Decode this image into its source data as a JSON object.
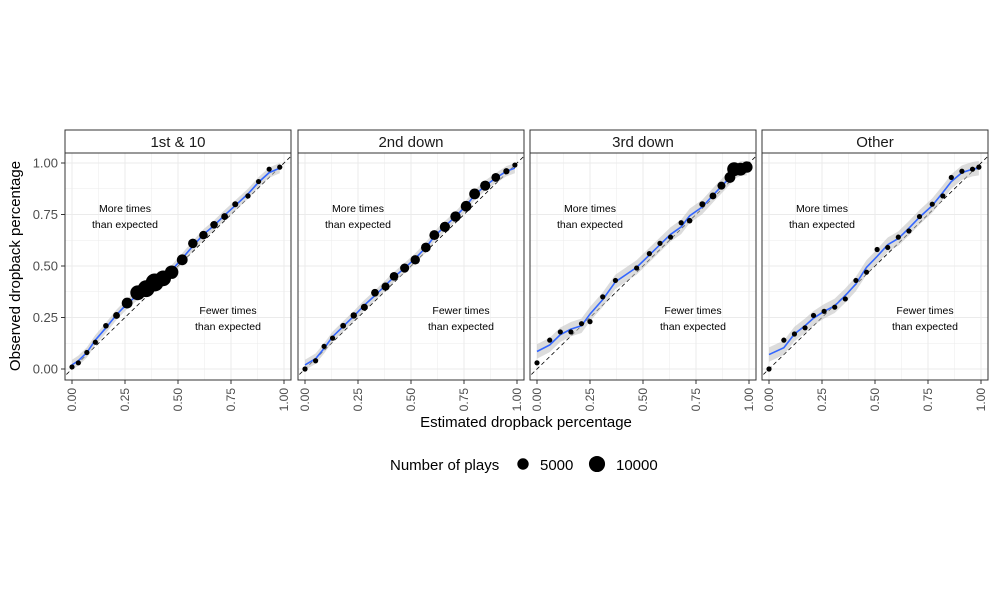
{
  "chart_data": {
    "type": "scatter",
    "xlabel": "Estimated dropback percentage",
    "ylabel": "Observed dropback percentage",
    "xlim": [
      0,
      1
    ],
    "ylim": [
      0,
      1
    ],
    "ticks": [
      0,
      0.25,
      0.5,
      0.75,
      1
    ],
    "tick_labels": [
      "0.00",
      "0.25",
      "0.50",
      "0.75",
      "1.00"
    ],
    "grid": true,
    "reference_line": "dashed y = x",
    "fit_line": "loess smooth with confidence band",
    "colors": {
      "points": "#000000",
      "fit": "#3366ff",
      "band": "#bfbfbf",
      "strip": "#ffffff",
      "grid": "#ebebeb"
    },
    "annotations": {
      "upper": [
        "More times",
        "than expected"
      ],
      "lower": [
        "Fewer times",
        "than expected"
      ]
    },
    "legend": {
      "title": "Number of plays",
      "placement": "bottom",
      "entries": [
        {
          "label": "5000",
          "value": 5000
        },
        {
          "label": "10000",
          "value": 10000
        }
      ]
    },
    "panels": [
      {
        "title": "1st & 10",
        "points": [
          {
            "x": 0.0,
            "y": 0.01,
            "n": 400
          },
          {
            "x": 0.03,
            "y": 0.03,
            "n": 500
          },
          {
            "x": 0.07,
            "y": 0.08,
            "n": 600
          },
          {
            "x": 0.11,
            "y": 0.13,
            "n": 800
          },
          {
            "x": 0.16,
            "y": 0.21,
            "n": 1200
          },
          {
            "x": 0.21,
            "y": 0.26,
            "n": 1800
          },
          {
            "x": 0.26,
            "y": 0.32,
            "n": 4500
          },
          {
            "x": 0.31,
            "y": 0.37,
            "n": 8500
          },
          {
            "x": 0.35,
            "y": 0.39,
            "n": 11000
          },
          {
            "x": 0.39,
            "y": 0.42,
            "n": 12500
          },
          {
            "x": 0.43,
            "y": 0.44,
            "n": 9500
          },
          {
            "x": 0.47,
            "y": 0.47,
            "n": 7000
          },
          {
            "x": 0.52,
            "y": 0.53,
            "n": 4500
          },
          {
            "x": 0.57,
            "y": 0.61,
            "n": 3500
          },
          {
            "x": 0.62,
            "y": 0.65,
            "n": 2800
          },
          {
            "x": 0.67,
            "y": 0.7,
            "n": 2200
          },
          {
            "x": 0.72,
            "y": 0.74,
            "n": 1800
          },
          {
            "x": 0.77,
            "y": 0.8,
            "n": 1400
          },
          {
            "x": 0.83,
            "y": 0.84,
            "n": 1100
          },
          {
            "x": 0.88,
            "y": 0.91,
            "n": 900
          },
          {
            "x": 0.93,
            "y": 0.97,
            "n": 700
          },
          {
            "x": 0.98,
            "y": 0.98,
            "n": 500
          }
        ]
      },
      {
        "title": "2nd down",
        "points": [
          {
            "x": 0.0,
            "y": 0.0,
            "n": 300
          },
          {
            "x": 0.05,
            "y": 0.04,
            "n": 500
          },
          {
            "x": 0.09,
            "y": 0.11,
            "n": 800
          },
          {
            "x": 0.13,
            "y": 0.15,
            "n": 1000
          },
          {
            "x": 0.18,
            "y": 0.21,
            "n": 1300
          },
          {
            "x": 0.23,
            "y": 0.26,
            "n": 1600
          },
          {
            "x": 0.28,
            "y": 0.3,
            "n": 1900
          },
          {
            "x": 0.33,
            "y": 0.37,
            "n": 2300
          },
          {
            "x": 0.38,
            "y": 0.4,
            "n": 2600
          },
          {
            "x": 0.42,
            "y": 0.45,
            "n": 2900
          },
          {
            "x": 0.47,
            "y": 0.49,
            "n": 3200
          },
          {
            "x": 0.52,
            "y": 0.53,
            "n": 3400
          },
          {
            "x": 0.57,
            "y": 0.59,
            "n": 3600
          },
          {
            "x": 0.61,
            "y": 0.65,
            "n": 3800
          },
          {
            "x": 0.66,
            "y": 0.69,
            "n": 4000
          },
          {
            "x": 0.71,
            "y": 0.74,
            "n": 4200
          },
          {
            "x": 0.76,
            "y": 0.79,
            "n": 4400
          },
          {
            "x": 0.8,
            "y": 0.85,
            "n": 4500
          },
          {
            "x": 0.85,
            "y": 0.89,
            "n": 4000
          },
          {
            "x": 0.9,
            "y": 0.93,
            "n": 3000
          },
          {
            "x": 0.95,
            "y": 0.96,
            "n": 1500
          },
          {
            "x": 0.99,
            "y": 0.99,
            "n": 500
          }
        ]
      },
      {
        "title": "3rd down",
        "points": [
          {
            "x": 0.0,
            "y": 0.03,
            "n": 200
          },
          {
            "x": 0.06,
            "y": 0.14,
            "n": 400
          },
          {
            "x": 0.11,
            "y": 0.18,
            "n": 500
          },
          {
            "x": 0.16,
            "y": 0.18,
            "n": 500
          },
          {
            "x": 0.21,
            "y": 0.22,
            "n": 500
          },
          {
            "x": 0.25,
            "y": 0.23,
            "n": 500
          },
          {
            "x": 0.31,
            "y": 0.35,
            "n": 500
          },
          {
            "x": 0.37,
            "y": 0.43,
            "n": 600
          },
          {
            "x": 0.47,
            "y": 0.49,
            "n": 600
          },
          {
            "x": 0.53,
            "y": 0.56,
            "n": 700
          },
          {
            "x": 0.58,
            "y": 0.61,
            "n": 800
          },
          {
            "x": 0.63,
            "y": 0.64,
            "n": 900
          },
          {
            "x": 0.68,
            "y": 0.71,
            "n": 1000
          },
          {
            "x": 0.72,
            "y": 0.72,
            "n": 1200
          },
          {
            "x": 0.78,
            "y": 0.8,
            "n": 1400
          },
          {
            "x": 0.83,
            "y": 0.84,
            "n": 1800
          },
          {
            "x": 0.87,
            "y": 0.89,
            "n": 2500
          },
          {
            "x": 0.91,
            "y": 0.93,
            "n": 4500
          },
          {
            "x": 0.93,
            "y": 0.97,
            "n": 7500
          },
          {
            "x": 0.96,
            "y": 0.97,
            "n": 6500
          },
          {
            "x": 0.99,
            "y": 0.98,
            "n": 5000
          }
        ]
      },
      {
        "title": "Other",
        "points": [
          {
            "x": 0.0,
            "y": 0.0,
            "n": 200
          },
          {
            "x": 0.07,
            "y": 0.14,
            "n": 500
          },
          {
            "x": 0.12,
            "y": 0.17,
            "n": 500
          },
          {
            "x": 0.17,
            "y": 0.2,
            "n": 500
          },
          {
            "x": 0.21,
            "y": 0.26,
            "n": 500
          },
          {
            "x": 0.26,
            "y": 0.28,
            "n": 500
          },
          {
            "x": 0.31,
            "y": 0.3,
            "n": 500
          },
          {
            "x": 0.36,
            "y": 0.34,
            "n": 500
          },
          {
            "x": 0.41,
            "y": 0.43,
            "n": 500
          },
          {
            "x": 0.46,
            "y": 0.47,
            "n": 500
          },
          {
            "x": 0.51,
            "y": 0.58,
            "n": 500
          },
          {
            "x": 0.56,
            "y": 0.59,
            "n": 500
          },
          {
            "x": 0.61,
            "y": 0.64,
            "n": 500
          },
          {
            "x": 0.66,
            "y": 0.67,
            "n": 500
          },
          {
            "x": 0.71,
            "y": 0.74,
            "n": 500
          },
          {
            "x": 0.77,
            "y": 0.8,
            "n": 500
          },
          {
            "x": 0.82,
            "y": 0.84,
            "n": 500
          },
          {
            "x": 0.86,
            "y": 0.93,
            "n": 500
          },
          {
            "x": 0.91,
            "y": 0.96,
            "n": 600
          },
          {
            "x": 0.96,
            "y": 0.97,
            "n": 600
          },
          {
            "x": 0.99,
            "y": 0.98,
            "n": 500
          }
        ]
      }
    ]
  }
}
